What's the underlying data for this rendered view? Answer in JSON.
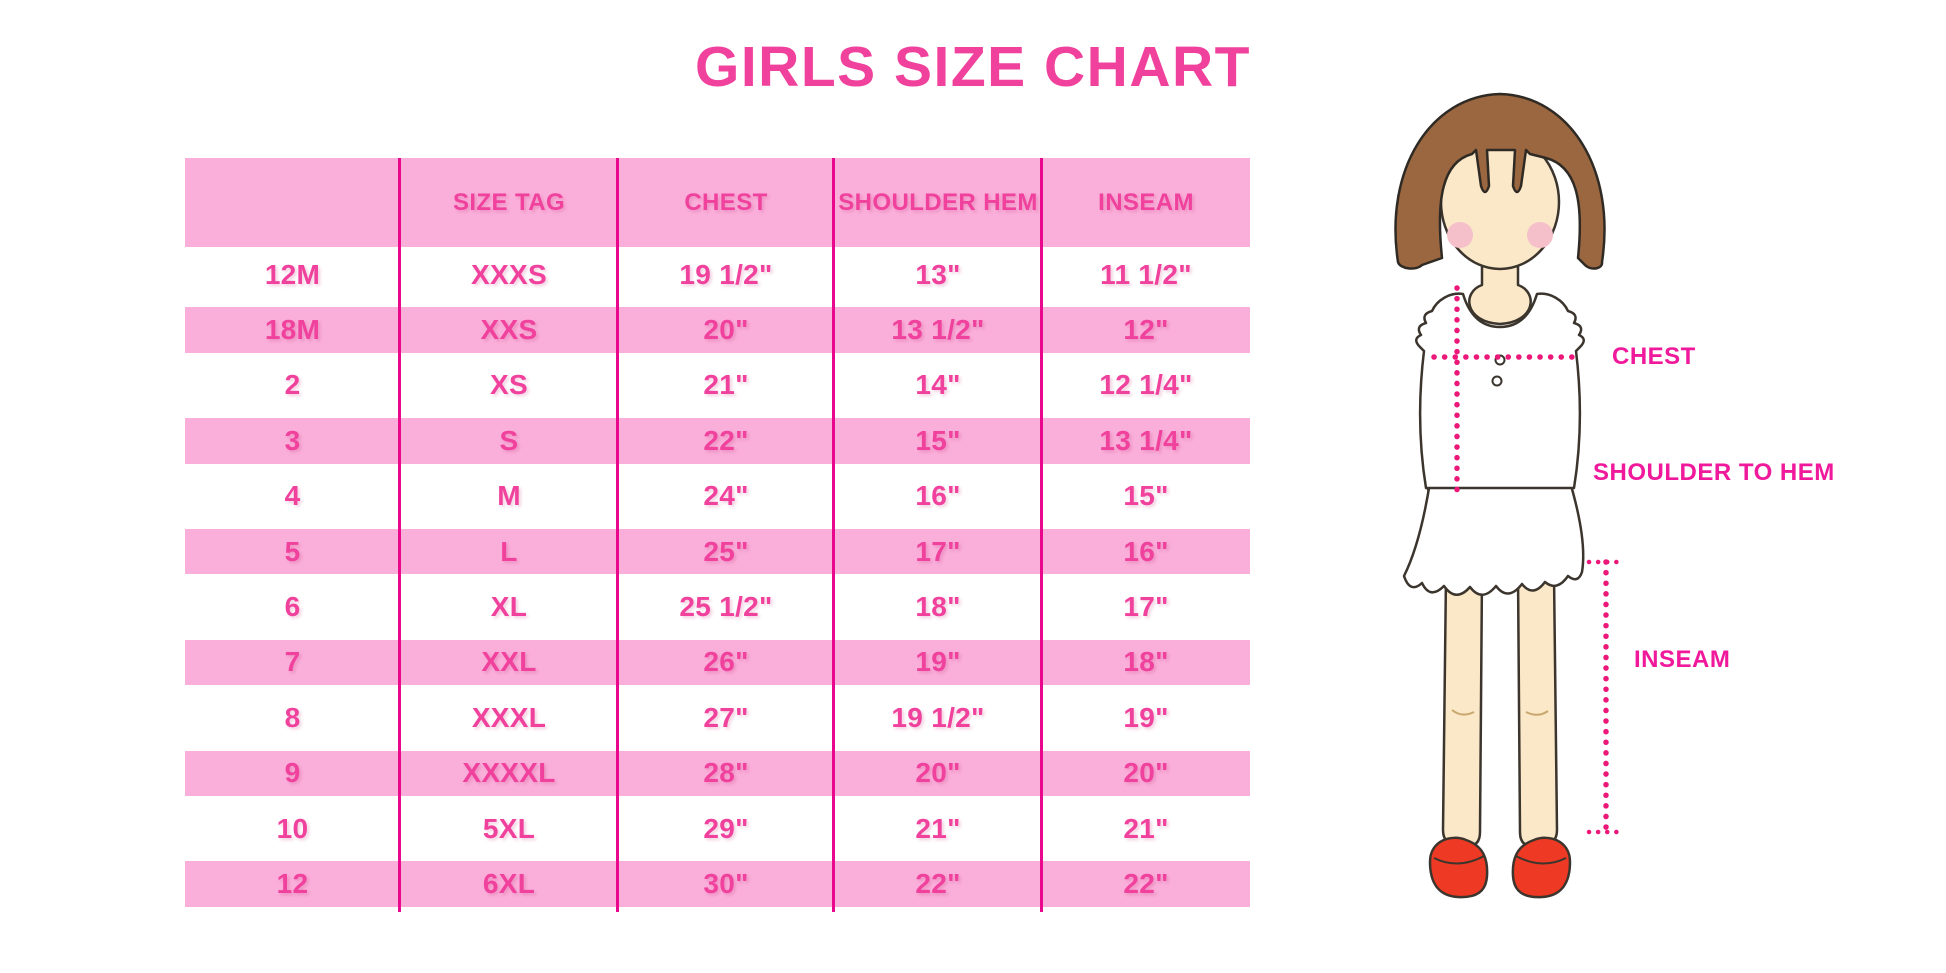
{
  "page": {
    "title": "GIRLS SIZE CHART",
    "background": "#FFFFFF"
  },
  "colors": {
    "title_pink": "#F0419D",
    "row_band_pink": "#FAAFDA",
    "table_text_pink": "#F0419D",
    "divider_pink": "#E9078C",
    "dotted_line_pink": "#EC1879",
    "label_pink": "#F0199C",
    "hair_brown": "#9A6740",
    "skin_tone": "#FBE8C8",
    "shoe_red": "#EE3A24",
    "cheek_pink": "#F5C0CA",
    "shirt_white": "#FFFFFF"
  },
  "chart_data": {
    "type": "table",
    "title": "GIRLS SIZE CHART",
    "columns": [
      "",
      "SIZE TAG",
      "CHEST",
      "SHOULDER HEM",
      "INSEAM"
    ],
    "rows": [
      [
        "12M",
        "XXXS",
        "19 1/2\"",
        "13\"",
        "11 1/2\""
      ],
      [
        "18M",
        "XXS",
        "20\"",
        "13 1/2\"",
        "12\""
      ],
      [
        "2",
        "XS",
        "21\"",
        "14\"",
        "12 1/4\""
      ],
      [
        "3",
        "S",
        "22\"",
        "15\"",
        "13 1/4\""
      ],
      [
        "4",
        "M",
        "24\"",
        "16\"",
        "15\""
      ],
      [
        "5",
        "L",
        "25\"",
        "17\"",
        "16\""
      ],
      [
        "6",
        "XL",
        "25 1/2\"",
        "18\"",
        "17\""
      ],
      [
        "7",
        "XXL",
        "26\"",
        "19\"",
        "18\""
      ],
      [
        "8",
        "XXXL",
        "27\"",
        "19 1/2\"",
        "19\""
      ],
      [
        "9",
        "XXXXL",
        "28\"",
        "20\"",
        "20\""
      ],
      [
        "10",
        "5XL",
        "29\"",
        "21\"",
        "21\""
      ],
      [
        "12",
        "6XL",
        "30\"",
        "22\"",
        "22\""
      ]
    ],
    "units": "inches",
    "layout_hints": {
      "striping": "header pink; data rows alternate white/pink starting white, pink bands inset with white gaps",
      "grid": "vertical magenta dividers only, spanning full table height"
    }
  },
  "figure": {
    "labels": {
      "chest": "CHEST",
      "shoulder_to_hem": "SHOULDER TO HEM",
      "inseam": "INSEAM"
    }
  }
}
